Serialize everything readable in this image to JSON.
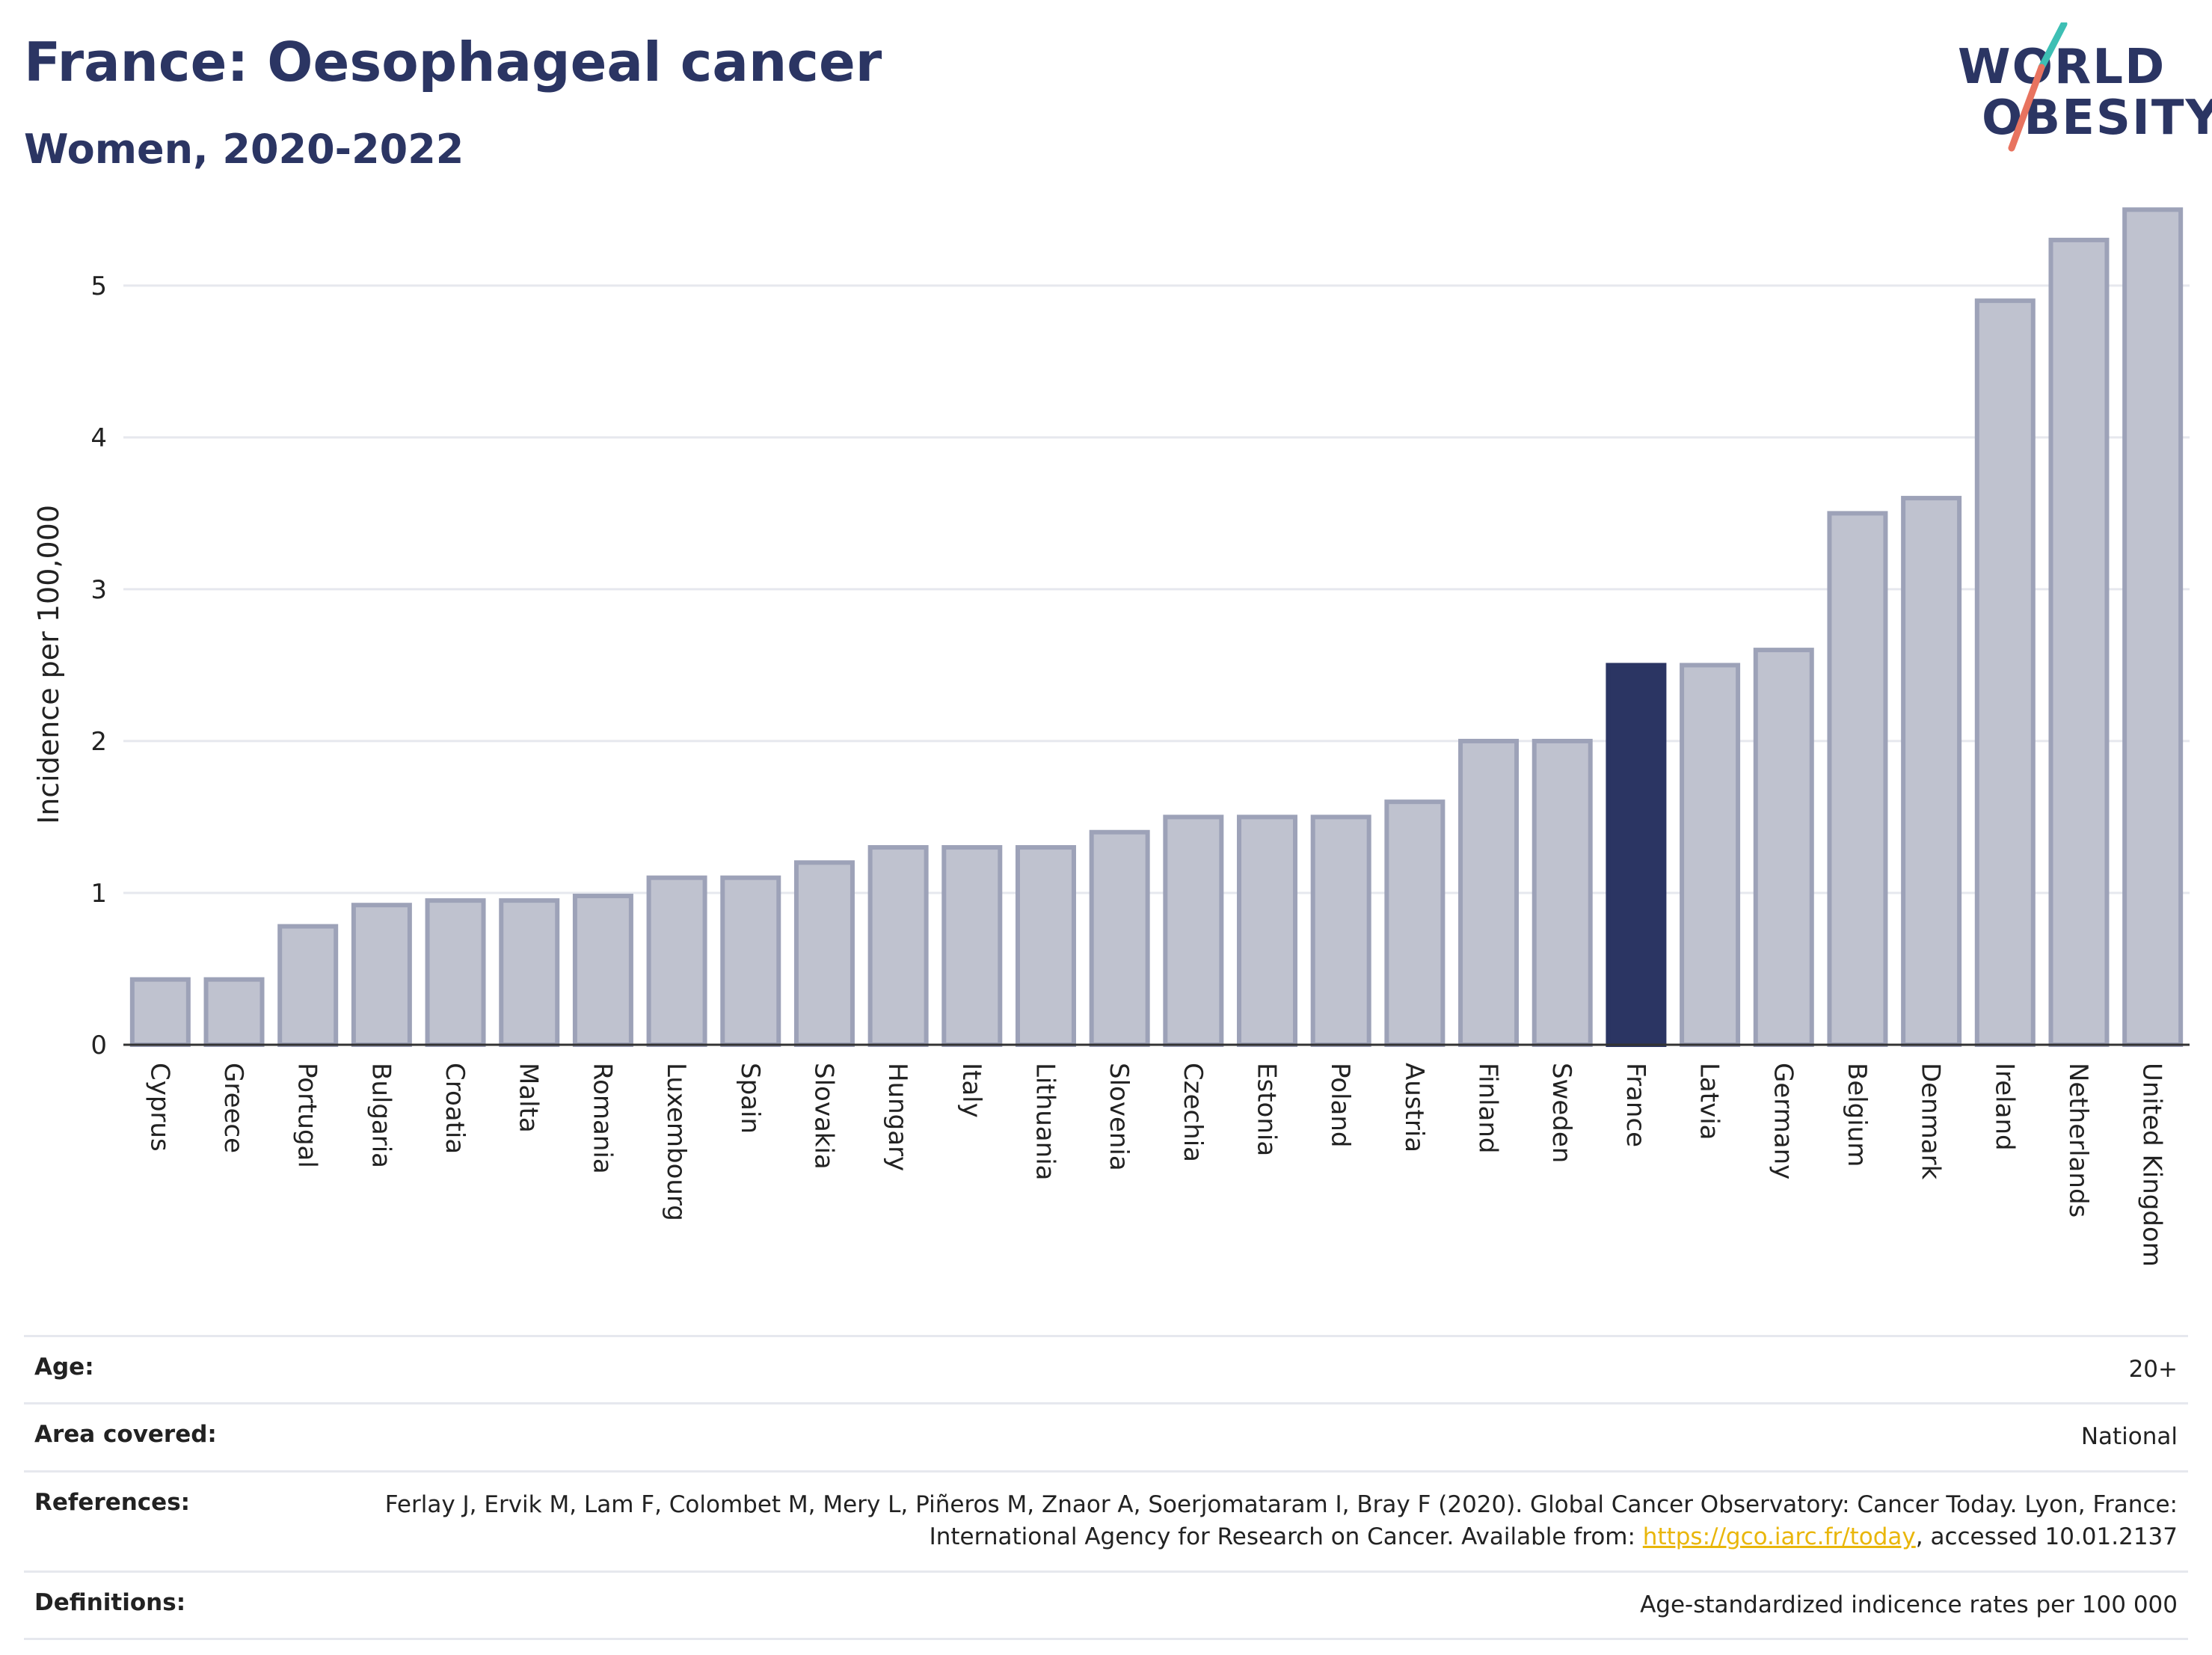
{
  "header": {
    "title": "France: Oesophageal cancer",
    "subtitle": "Women, 2020-2022"
  },
  "logo": {
    "line1": "WORLD",
    "line2": "OBESITY"
  },
  "colors": {
    "highlight": "#2b3563",
    "bar_fill": "#bfc2cf",
    "bar_stroke": "#9da2b8",
    "grid": "#e6e8ee",
    "link": "#e9b60a"
  },
  "chart_data": {
    "type": "bar",
    "ylabel": "Incidence per 100,000",
    "ylim": [
      0,
      5.6
    ],
    "yticks": [
      0,
      1,
      2,
      3,
      4,
      5
    ],
    "grid": true,
    "highlight": "France",
    "categories": [
      "Cyprus",
      "Greece",
      "Portugal",
      "Bulgaria",
      "Croatia",
      "Malta",
      "Romania",
      "Luxembourg",
      "Spain",
      "Slovakia",
      "Hungary",
      "Italy",
      "Lithuania",
      "Slovenia",
      "Czechia",
      "Estonia",
      "Poland",
      "Austria",
      "Finland",
      "Sweden",
      "France",
      "Latvia",
      "Germany",
      "Belgium",
      "Denmark",
      "Ireland",
      "Netherlands",
      "United Kingdom"
    ],
    "values": [
      0.43,
      0.43,
      0.78,
      0.92,
      0.95,
      0.95,
      0.98,
      1.1,
      1.1,
      1.2,
      1.3,
      1.3,
      1.3,
      1.4,
      1.5,
      1.5,
      1.5,
      1.6,
      2.0,
      2.0,
      2.5,
      2.5,
      2.6,
      3.5,
      3.6,
      4.9,
      5.3,
      5.5
    ]
  },
  "meta": {
    "age_label": "Age:",
    "age_value": "20+",
    "area_label": "Area covered:",
    "area_value": "National",
    "ref_label": "References:",
    "ref_text_1": "Ferlay J, Ervik M, Lam F, Colombet M, Mery L, Piñeros M, Znaor A, Soerjomataram I, Bray F (2020). Global Cancer Observatory: Cancer Today. Lyon, France: International Agency for Research on Cancer. Available from: ",
    "ref_link": "https://gco.iarc.fr/today",
    "ref_text_2": ", accessed 10.01.2137",
    "def_label": "Definitions:",
    "def_value": "Age-standardized indicence rates per 100 000"
  }
}
